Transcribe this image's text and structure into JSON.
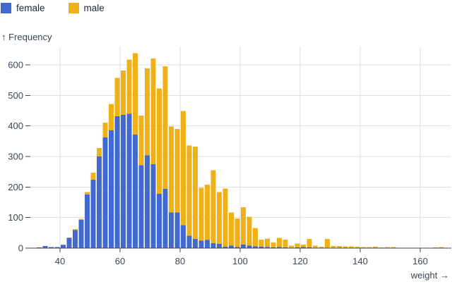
{
  "legend": {
    "items": [
      {
        "label": "female",
        "color": "#4269d0"
      },
      {
        "label": "male",
        "color": "#efb118"
      }
    ]
  },
  "chart_data": {
    "type": "bar",
    "variant": "stacked-histogram",
    "title": "",
    "xlabel": "weight →",
    "ylabel": "↑ Frequency",
    "x_field": "weight",
    "y_field": "Frequency",
    "grid": true,
    "legend_position": "top-left",
    "xlim": [
      30,
      171
    ],
    "ylim": [
      0,
      660
    ],
    "x_ticks": [
      40,
      60,
      80,
      100,
      120,
      140,
      160
    ],
    "y_ticks": [
      0,
      100,
      200,
      300,
      400,
      500,
      600
    ],
    "bin_width": 2,
    "bin_starts": [
      32,
      34,
      36,
      38,
      40,
      42,
      44,
      46,
      48,
      50,
      52,
      54,
      56,
      58,
      60,
      62,
      64,
      66,
      68,
      70,
      72,
      74,
      76,
      78,
      80,
      82,
      84,
      86,
      88,
      90,
      92,
      94,
      96,
      98,
      100,
      102,
      104,
      106,
      108,
      110,
      112,
      114,
      116,
      118,
      120,
      122,
      124,
      126,
      128,
      130,
      132,
      134,
      136,
      138,
      140,
      142,
      144,
      146,
      148,
      150,
      152,
      154,
      156,
      158,
      160,
      162,
      164,
      166,
      168
    ],
    "series": [
      {
        "name": "female",
        "color": "#4269d0",
        "values": [
          2,
          7,
          4,
          3,
          10,
          33,
          59,
          92,
          175,
          224,
          300,
          362,
          385,
          432,
          436,
          440,
          372,
          271,
          303,
          275,
          178,
          194,
          117,
          117,
          75,
          40,
          30,
          24,
          26,
          16,
          14,
          5,
          8,
          3,
          11,
          8,
          6,
          5,
          3,
          2,
          3,
          2,
          1,
          2,
          4,
          2,
          1,
          0,
          1,
          0,
          0,
          0,
          0,
          0,
          0,
          0,
          0,
          0,
          0,
          0,
          0,
          0,
          0,
          0,
          0,
          0,
          0,
          0,
          0
        ]
      },
      {
        "name": "male",
        "color": "#efb118",
        "values": [
          0,
          0,
          0,
          0,
          1,
          2,
          3,
          4,
          9,
          23,
          28,
          49,
          87,
          125,
          146,
          177,
          266,
          163,
          285,
          346,
          345,
          401,
          281,
          273,
          374,
          296,
          302,
          173,
          182,
          239,
          169,
          190,
          108,
          94,
          123,
          95,
          60,
          23,
          28,
          16,
          31,
          26,
          7,
          13,
          8,
          28,
          7,
          5,
          29,
          7,
          7,
          6,
          6,
          5,
          3,
          4,
          5,
          2,
          4,
          4,
          1,
          1,
          0,
          1,
          0,
          1,
          2,
          3,
          1
        ]
      }
    ]
  }
}
